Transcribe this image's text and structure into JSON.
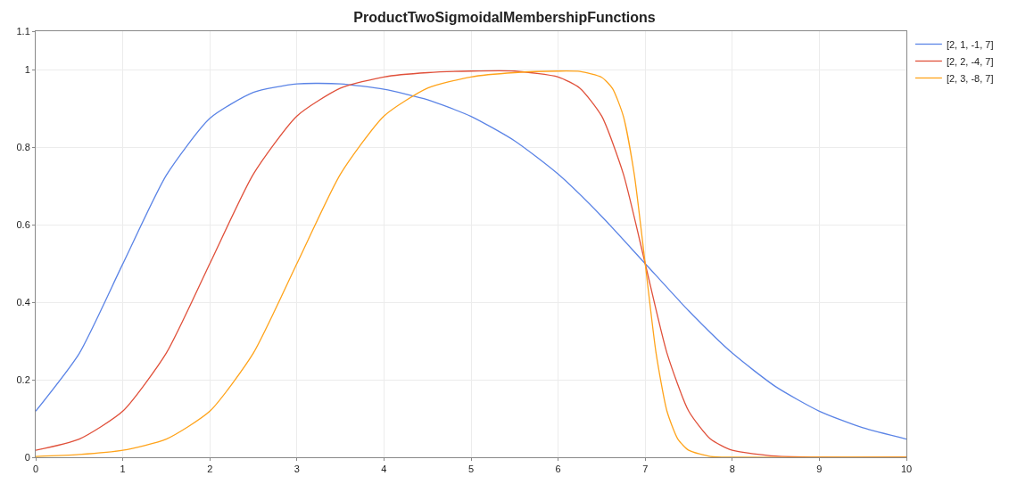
{
  "chart_data": {
    "type": "line",
    "title": "ProductTwoSigmoidalMembershipFunctions",
    "xlim": [
      0,
      10
    ],
    "xticks": [
      0,
      1,
      2,
      3,
      4,
      5,
      6,
      7,
      8,
      9,
      10
    ],
    "ylim": [
      0,
      1.1
    ],
    "yticks": [
      0,
      0.2,
      0.4,
      0.6,
      0.8,
      1,
      1.1
    ],
    "grid": true,
    "legend": "top right",
    "marker": "none",
    "line_style": "solid",
    "series": [
      {
        "name": "[2, 1, -1, 7]",
        "color": "#5b84e6",
        "x": [
          0,
          0.5,
          1,
          1.5,
          2,
          2.5,
          3,
          3.5,
          4,
          4.5,
          5,
          5.5,
          6,
          6.5,
          7,
          7.5,
          8,
          8.5,
          9,
          9.5,
          10
        ],
        "values": [
          0.119,
          0.268,
          0.499,
          0.728,
          0.875,
          0.942,
          0.964,
          0.964,
          0.95,
          0.923,
          0.88,
          0.817,
          0.731,
          0.622,
          0.5,
          0.378,
          0.269,
          0.182,
          0.119,
          0.076,
          0.047
        ]
      },
      {
        "name": "[2, 2, -4, 7]",
        "color": "#e0503a",
        "x": [
          0,
          0.5,
          1,
          1.5,
          2,
          2.5,
          3,
          3.5,
          4,
          4.5,
          5,
          5.5,
          6,
          6.25,
          6.5,
          6.75,
          7,
          7.25,
          7.5,
          7.75,
          8,
          8.5,
          9,
          10
        ],
        "values": [
          0.018,
          0.047,
          0.119,
          0.269,
          0.5,
          0.731,
          0.881,
          0.953,
          0.982,
          0.993,
          0.997,
          0.997,
          0.982,
          0.953,
          0.881,
          0.731,
          0.5,
          0.269,
          0.119,
          0.047,
          0.018,
          0.003,
          0.0,
          0.0
        ]
      },
      {
        "name": "[2, 3, -8, 7]",
        "color": "#ffa31a",
        "x": [
          0,
          0.5,
          1,
          1.5,
          2,
          2.5,
          3,
          3.5,
          4,
          4.5,
          5,
          5.5,
          6,
          6.25,
          6.5,
          6.625,
          6.75,
          6.875,
          7,
          7.125,
          7.25,
          7.375,
          7.5,
          7.75,
          8,
          9,
          10
        ],
        "values": [
          0.002,
          0.007,
          0.018,
          0.047,
          0.119,
          0.269,
          0.5,
          0.731,
          0.881,
          0.953,
          0.982,
          0.993,
          0.997,
          0.996,
          0.981,
          0.952,
          0.88,
          0.73,
          0.5,
          0.269,
          0.119,
          0.047,
          0.018,
          0.002,
          0.0,
          0.0,
          0.0
        ]
      }
    ]
  }
}
